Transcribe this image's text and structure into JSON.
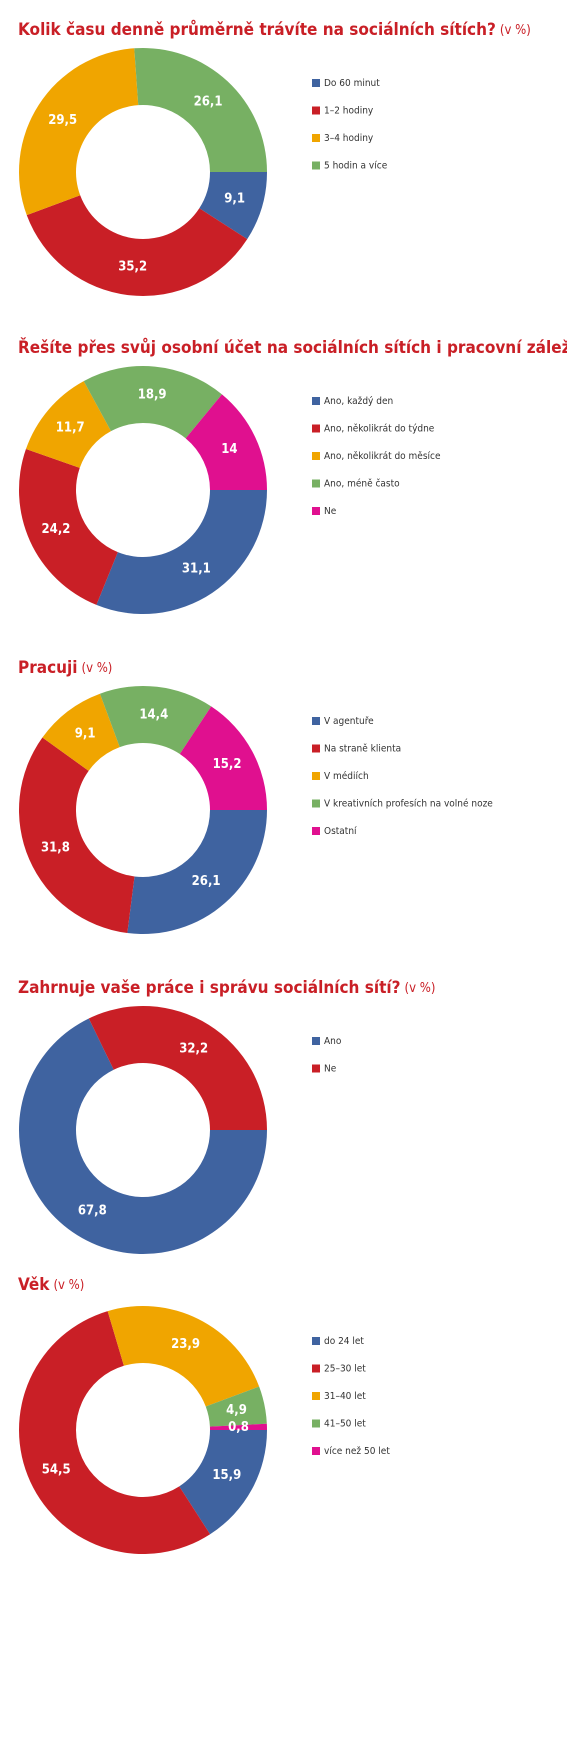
{
  "chart_data": [
    {
      "type": "donut",
      "title": "Kolik času denně průměrně trávíte na sociálních sítích?",
      "subtitle": "(v %)",
      "categories": [
        "Do 60 minut",
        "1–2 hodiny",
        "3–4 hodiny",
        "5 hodin a více"
      ],
      "colors": [
        "#3f63a0",
        "#c91f26",
        "#f0a500",
        "#77b063"
      ],
      "values": [
        9.1,
        35.2,
        29.5,
        26.1
      ],
      "value_labels": [
        "9,1",
        "35,2",
        "29,5",
        "26,1"
      ]
    },
    {
      "type": "donut",
      "title": "Řešíte přes svůj osobní účet na sociálních sítích i pracovní záležitosti?",
      "subtitle": "(v %)",
      "categories": [
        "Ano, každý den",
        "Ano, několikrát do týdne",
        "Ano, několikrát do měsíce",
        "Ano, méně často",
        "Ne"
      ],
      "colors": [
        "#3f63a0",
        "#c91f26",
        "#f0a500",
        "#77b063",
        "#e0108f"
      ],
      "values": [
        31.1,
        24.2,
        11.7,
        18.9,
        14
      ],
      "value_labels": [
        "31,1",
        "24,2",
        "11,7",
        "18,9",
        "14"
      ]
    },
    {
      "type": "donut",
      "title": "Pracuji",
      "subtitle": "(v %)",
      "categories": [
        "V agentuře",
        "Na straně klienta",
        "V médiích",
        "V kreativních profesích na volné noze",
        "Ostatní"
      ],
      "colors": [
        "#3f63a0",
        "#c91f26",
        "#f0a500",
        "#77b063",
        "#e0108f"
      ],
      "values": [
        26.1,
        31.8,
        9.1,
        14.4,
        15.2
      ],
      "value_labels": [
        "26,1",
        "31,8",
        "9,1",
        "14,4",
        "15,2"
      ]
    },
    {
      "type": "donut",
      "title": "Zahrnuje vaše práce i správu sociálních sítí?",
      "subtitle": "(v %)",
      "categories": [
        "Ano",
        "Ne"
      ],
      "colors": [
        "#3f63a0",
        "#c91f26"
      ],
      "values": [
        67.8,
        32.2
      ],
      "value_labels": [
        "67,8",
        "32,2"
      ]
    },
    {
      "type": "donut",
      "title": "Věk",
      "subtitle": "(v %)",
      "categories": [
        "do 24 let",
        "25–30 let",
        "31–40 let",
        "41–50 let",
        "více než 50 let"
      ],
      "colors": [
        "#3f63a0",
        "#c91f26",
        "#f0a500",
        "#77b063",
        "#e0108f"
      ],
      "values": [
        15.9,
        54.5,
        23.9,
        4.9,
        0.8
      ],
      "value_labels": [
        "15,9",
        "54,5",
        "23,9",
        "4,9",
        "0,8"
      ]
    }
  ]
}
